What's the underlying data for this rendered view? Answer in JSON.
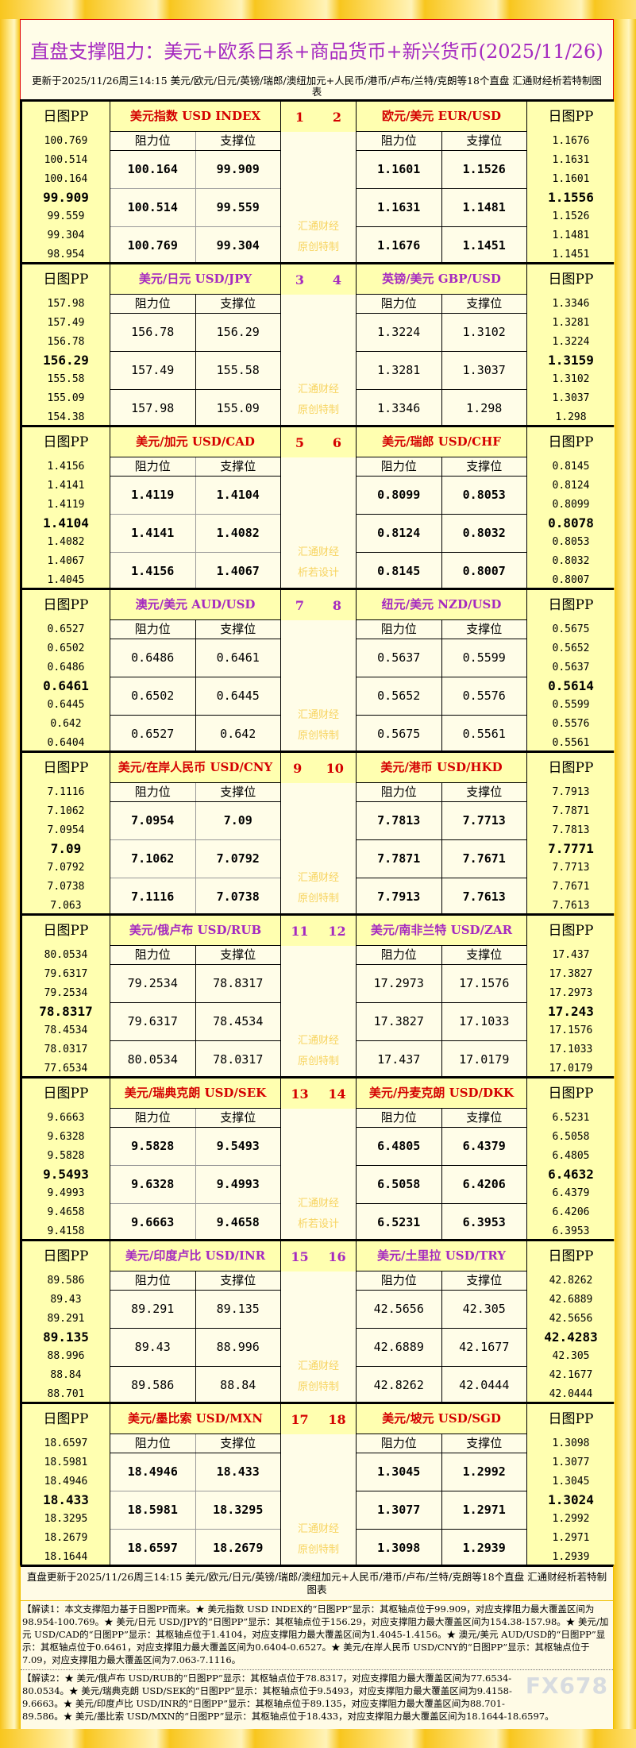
{
  "header": {
    "title": "直盘支撑阻力：美元+欧系日系+商品货币+新兴货币(2025/11/26)",
    "update": "更新于2025/11/26周三14:15 美元/欧元/日元/英镑/瑞郎/澳纽加元+人民币/港币/卢布/兰特/克朗等18个直盘 汇通财经析若特制图表"
  },
  "labels": {
    "pp": "日图PP",
    "resistance": "阻力位",
    "support": "支撑位"
  },
  "colors": {
    "odd_header": "#d40000",
    "even_header": "#a52ac0",
    "title": "#a52ac0",
    "pp_column": "#ffffb0",
    "frame": "#f5c516"
  },
  "blocks": [
    {
      "nums": [
        "1",
        "2"
      ],
      "watermark": [
        "汇通财经",
        "原创特制"
      ],
      "left": {
        "name": "美元指数 USD INDEX",
        "pp": [
          "100.769",
          "100.514",
          "100.164",
          "99.909",
          "99.559",
          "99.304",
          "98.954"
        ],
        "rows": [
          [
            "100.164",
            "99.909"
          ],
          [
            "100.514",
            "99.559"
          ],
          [
            "100.769",
            "99.304"
          ]
        ]
      },
      "right": {
        "name": "欧元/美元 EUR/USD",
        "pp": [
          "1.1676",
          "1.1631",
          "1.1601",
          "1.1556",
          "1.1526",
          "1.1481",
          "1.1451"
        ],
        "rows": [
          [
            "1.1601",
            "1.1526"
          ],
          [
            "1.1631",
            "1.1481"
          ],
          [
            "1.1676",
            "1.1451"
          ]
        ]
      }
    },
    {
      "nums": [
        "3",
        "4"
      ],
      "watermark": [
        "汇通财经",
        "原创特制"
      ],
      "left": {
        "name": "美元/日元 USD/JPY",
        "pp": [
          "157.98",
          "157.49",
          "156.78",
          "156.29",
          "155.58",
          "155.09",
          "154.38"
        ],
        "rows": [
          [
            "156.78",
            "156.29"
          ],
          [
            "157.49",
            "155.58"
          ],
          [
            "157.98",
            "155.09"
          ]
        ]
      },
      "right": {
        "name": "英镑/美元 GBP/USD",
        "pp": [
          "1.3346",
          "1.3281",
          "1.3224",
          "1.3159",
          "1.3102",
          "1.3037",
          "1.298"
        ],
        "rows": [
          [
            "1.3224",
            "1.3102"
          ],
          [
            "1.3281",
            "1.3037"
          ],
          [
            "1.3346",
            "1.298"
          ]
        ]
      }
    },
    {
      "nums": [
        "5",
        "6"
      ],
      "watermark": [
        "汇通财经",
        "析若设计"
      ],
      "left": {
        "name": "美元/加元 USD/CAD",
        "pp": [
          "1.4156",
          "1.4141",
          "1.4119",
          "1.4104",
          "1.4082",
          "1.4067",
          "1.4045"
        ],
        "rows": [
          [
            "1.4119",
            "1.4104"
          ],
          [
            "1.4141",
            "1.4082"
          ],
          [
            "1.4156",
            "1.4067"
          ]
        ]
      },
      "right": {
        "name": "美元/瑞郎 USD/CHF",
        "pp": [
          "0.8145",
          "0.8124",
          "0.8099",
          "0.8078",
          "0.8053",
          "0.8032",
          "0.8007"
        ],
        "rows": [
          [
            "0.8099",
            "0.8053"
          ],
          [
            "0.8124",
            "0.8032"
          ],
          [
            "0.8145",
            "0.8007"
          ]
        ]
      }
    },
    {
      "nums": [
        "7",
        "8"
      ],
      "watermark": [
        "汇通财经",
        "原创特制"
      ],
      "left": {
        "name": "澳元/美元 AUD/USD",
        "pp": [
          "0.6527",
          "0.6502",
          "0.6486",
          "0.6461",
          "0.6445",
          "0.642",
          "0.6404"
        ],
        "rows": [
          [
            "0.6486",
            "0.6461"
          ],
          [
            "0.6502",
            "0.6445"
          ],
          [
            "0.6527",
            "0.642"
          ]
        ]
      },
      "right": {
        "name": "纽元/美元 NZD/USD",
        "pp": [
          "0.5675",
          "0.5652",
          "0.5637",
          "0.5614",
          "0.5599",
          "0.5576",
          "0.5561"
        ],
        "rows": [
          [
            "0.5637",
            "0.5599"
          ],
          [
            "0.5652",
            "0.5576"
          ],
          [
            "0.5675",
            "0.5561"
          ]
        ]
      }
    },
    {
      "nums": [
        "9",
        "10"
      ],
      "watermark": [
        "汇通财经",
        "原创特制"
      ],
      "left": {
        "name": "美元/在岸人民币 USD/CNY",
        "pp": [
          "7.1116",
          "7.1062",
          "7.0954",
          "7.09",
          "7.0792",
          "7.0738",
          "7.063"
        ],
        "rows": [
          [
            "7.0954",
            "7.09"
          ],
          [
            "7.1062",
            "7.0792"
          ],
          [
            "7.1116",
            "7.0738"
          ]
        ]
      },
      "right": {
        "name": "美元/港币 USD/HKD",
        "pp": [
          "7.7913",
          "7.7871",
          "7.7813",
          "7.7771",
          "7.7713",
          "7.7671",
          "7.7613"
        ],
        "rows": [
          [
            "7.7813",
            "7.7713"
          ],
          [
            "7.7871",
            "7.7671"
          ],
          [
            "7.7913",
            "7.7613"
          ]
        ]
      }
    },
    {
      "nums": [
        "11",
        "12"
      ],
      "watermark": [
        "汇通财经",
        "原创特制"
      ],
      "left": {
        "name": "美元/俄卢布 USD/RUB",
        "pp": [
          "80.0534",
          "79.6317",
          "79.2534",
          "78.8317",
          "78.4534",
          "78.0317",
          "77.6534"
        ],
        "rows": [
          [
            "79.2534",
            "78.8317"
          ],
          [
            "79.6317",
            "78.4534"
          ],
          [
            "80.0534",
            "78.0317"
          ]
        ]
      },
      "right": {
        "name": "美元/南非兰特 USD/ZAR",
        "pp": [
          "17.437",
          "17.3827",
          "17.2973",
          "17.243",
          "17.1576",
          "17.1033",
          "17.0179"
        ],
        "rows": [
          [
            "17.2973",
            "17.1576"
          ],
          [
            "17.3827",
            "17.1033"
          ],
          [
            "17.437",
            "17.0179"
          ]
        ]
      }
    },
    {
      "nums": [
        "13",
        "14"
      ],
      "watermark": [
        "汇通财经",
        "析若设计"
      ],
      "left": {
        "name": "美元/瑞典克朗 USD/SEK",
        "pp": [
          "9.6663",
          "9.6328",
          "9.5828",
          "9.5493",
          "9.4993",
          "9.4658",
          "9.4158"
        ],
        "rows": [
          [
            "9.5828",
            "9.5493"
          ],
          [
            "9.6328",
            "9.4993"
          ],
          [
            "9.6663",
            "9.4658"
          ]
        ]
      },
      "right": {
        "name": "美元/丹麦克朗 USD/DKK",
        "pp": [
          "6.5231",
          "6.5058",
          "6.4805",
          "6.4632",
          "6.4379",
          "6.4206",
          "6.3953"
        ],
        "rows": [
          [
            "6.4805",
            "6.4379"
          ],
          [
            "6.5058",
            "6.4206"
          ],
          [
            "6.5231",
            "6.3953"
          ]
        ]
      }
    },
    {
      "nums": [
        "15",
        "16"
      ],
      "watermark": [
        "汇通财经",
        "原创特制"
      ],
      "left": {
        "name": "美元/印度卢比 USD/INR",
        "pp": [
          "89.586",
          "89.43",
          "89.291",
          "89.135",
          "88.996",
          "88.84",
          "88.701"
        ],
        "rows": [
          [
            "89.291",
            "89.135"
          ],
          [
            "89.43",
            "88.996"
          ],
          [
            "89.586",
            "88.84"
          ]
        ]
      },
      "right": {
        "name": "美元/土里拉 USD/TRY",
        "pp": [
          "42.8262",
          "42.6889",
          "42.5656",
          "42.4283",
          "42.305",
          "42.1677",
          "42.0444"
        ],
        "rows": [
          [
            "42.5656",
            "42.305"
          ],
          [
            "42.6889",
            "42.1677"
          ],
          [
            "42.8262",
            "42.0444"
          ]
        ]
      }
    },
    {
      "nums": [
        "17",
        "18"
      ],
      "watermark": [
        "汇通财经",
        "原创特制"
      ],
      "left": {
        "name": "美元/墨比索 USD/MXN",
        "pp": [
          "18.6597",
          "18.5981",
          "18.4946",
          "18.433",
          "18.3295",
          "18.2679",
          "18.1644"
        ],
        "rows": [
          [
            "18.4946",
            "18.433"
          ],
          [
            "18.5981",
            "18.3295"
          ],
          [
            "18.6597",
            "18.2679"
          ]
        ]
      },
      "right": {
        "name": "美元/坡元 USD/SGD",
        "pp": [
          "1.3098",
          "1.3077",
          "1.3045",
          "1.3024",
          "1.2992",
          "1.2971",
          "1.2939"
        ],
        "rows": [
          [
            "1.3045",
            "1.2992"
          ],
          [
            "1.3077",
            "1.2971"
          ],
          [
            "1.3098",
            "1.2939"
          ]
        ]
      }
    }
  ],
  "footer": {
    "update": "直盘更新于2025/11/26周三14:15 美元/欧元/日元/英镑/瑞郎/澳纽加元+人民币/港币/卢布/兰特/克朗等18个直盘 汇通财经析若特制图表",
    "note1": "【解读1：本文支撑阻力基于日图PP而来。★ 美元指数 USD INDEX的“日图PP”显示：其枢轴点位于99.909，对应支撑阻力最大覆盖区间为98.954-100.769。★ 美元/日元 USD/JPY的“日图PP”显示：其枢轴点位于156.29，对应支撑阻力最大覆盖区间为154.38-157.98。★ 美元/加元 USD/CAD的“日图PP”显示：其枢轴点位于1.4104，对应支撑阻力最大覆盖区间为1.4045-1.4156。★ 澳元/美元 AUD/USD的“日图PP”显示：其枢轴点位于0.6461，对应支撑阻力最大覆盖区间为0.6404-0.6527。★ 美元/在岸人民币 USD/CNY的“日图PP”显示：其枢轴点位于7.09，对应支撑阻力最大覆盖区间为7.063-7.1116。",
    "note2": "【解读2：★ 美元/俄卢布 USD/RUB的“日图PP”显示：其枢轴点位于78.8317，对应支撑阻力最大覆盖区间为77.6534-80.0534。★ 美元/瑞典克朗 USD/SEK的“日图PP”显示：其枢轴点位于9.5493，对应支撑阻力最大覆盖区间为9.4158-9.6663。★ 美元/印度卢比 USD/INR的“日图PP”显示：其枢轴点位于89.135，对应支撑阻力最大覆盖区间为88.701-89.586。★ 美元/墨比索 USD/MXN的“日图PP”显示：其枢轴点位于18.433，对应支撑阻力最大覆盖区间为18.1644-18.6597。",
    "logo": "FX678"
  }
}
